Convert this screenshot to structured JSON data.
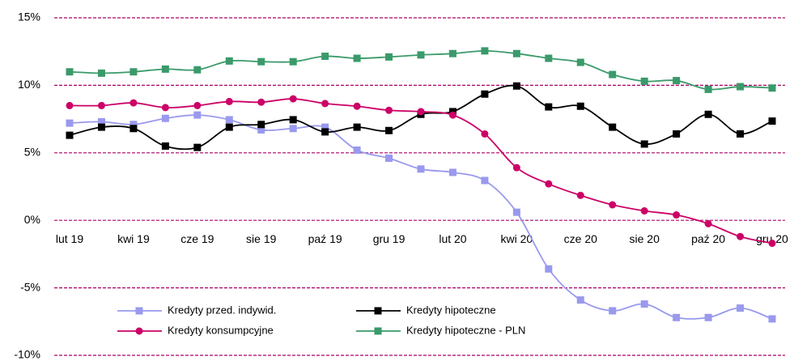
{
  "chart_data": {
    "type": "line",
    "categories": [
      "lut 19",
      null,
      "kwi 19",
      null,
      "cze 19",
      null,
      "sie 19",
      null,
      "paź 19",
      null,
      "gru 19",
      null,
      "lut 20",
      null,
      "kwi 20",
      null,
      "cze 20",
      null,
      "sie 20",
      null,
      "paź 20",
      null,
      "gru 20"
    ],
    "series": [
      {
        "name": "Kredyty przed. indywid.",
        "color": "#9999ee",
        "marker": "square",
        "values": [
          7.2,
          7.3,
          7.1,
          7.55,
          7.8,
          7.45,
          6.7,
          6.8,
          6.9,
          5.2,
          4.6,
          3.8,
          3.55,
          2.95,
          0.6,
          -3.6,
          -5.9,
          -6.7,
          -6.2,
          -7.2,
          -7.2,
          -6.5,
          -7.3
        ]
      },
      {
        "name": "Kredyty hipoteczne",
        "color": "#000000",
        "marker": "square",
        "values": [
          6.3,
          6.9,
          6.8,
          5.5,
          5.4,
          6.9,
          7.1,
          7.45,
          6.55,
          6.9,
          6.65,
          7.85,
          8.05,
          9.35,
          9.95,
          8.4,
          8.45,
          6.9,
          5.65,
          6.4,
          7.85,
          6.4,
          7.35
        ]
      },
      {
        "name": "Kredyty konsumpcyjne",
        "color": "#cc0066",
        "marker": "circle",
        "values": [
          8.5,
          8.5,
          8.7,
          8.35,
          8.5,
          8.8,
          8.75,
          9.0,
          8.65,
          8.45,
          8.15,
          8.05,
          7.8,
          6.4,
          3.9,
          2.7,
          1.85,
          1.15,
          0.7,
          0.4,
          -0.25,
          -1.2,
          -1.7
        ]
      },
      {
        "name": "Kredyty hipoteczne - PLN",
        "color": "#3a9a6a",
        "marker": "square",
        "values": [
          11.0,
          10.9,
          11.0,
          11.2,
          11.15,
          11.8,
          11.75,
          11.75,
          12.15,
          12.0,
          12.1,
          12.25,
          12.35,
          12.55,
          12.35,
          12.0,
          11.7,
          10.8,
          10.3,
          10.35,
          9.7,
          9.9,
          9.8
        ]
      }
    ],
    "ylim": [
      -10,
      15
    ],
    "yticks": [
      {
        "value": -10,
        "label": "-10%"
      },
      {
        "value": -5,
        "label": "-5%"
      },
      {
        "value": 0,
        "label": "0%"
      },
      {
        "value": 5,
        "label": "5%"
      },
      {
        "value": 10,
        "label": "10%"
      },
      {
        "value": 15,
        "label": "15%"
      }
    ],
    "grid": true,
    "grid_color": "#aa0066",
    "smooth": true
  }
}
